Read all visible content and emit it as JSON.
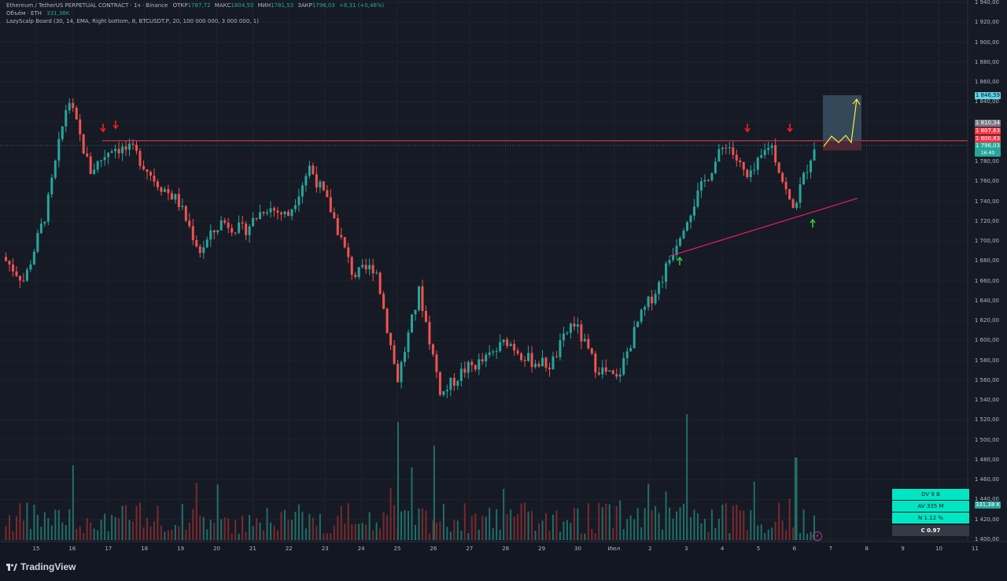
{
  "header": {
    "symbol": "Ethereum / TetherUS PERPETUAL CONTRACT · 1ч · Binance",
    "open_label": "ОТКР",
    "open": "1787,72",
    "high_label": "МАКС",
    "high": "1804,50",
    "low_label": "МИН",
    "low": "1781,53",
    "close_label": "ЗАКР",
    "close": "1796,03",
    "change": "+8,31 (+0,46%)",
    "volume_label": "Объём · ETH",
    "volume": "331,38K",
    "indicator": "LazyScalp Board (30, 14, EMA, Right bottom, 8, BTCUSDT.P, 20, 100 000 000, 3 000 000, 1)"
  },
  "price_axis": [
    "1 940,00",
    "1 920,00",
    "1 900,00",
    "1 880,00",
    "1 860,00",
    "1 840,00",
    "1 820,00",
    "1 800,00",
    "1 780,00",
    "1 760,00",
    "1 740,00",
    "1 720,00",
    "1 700,00",
    "1 680,00",
    "1 660,00",
    "1 640,00",
    "1 620,00",
    "1 600,00",
    "1 580,00",
    "1 560,00",
    "1 540,00",
    "1 520,00",
    "1 500,00",
    "1 480,00",
    "1 460,00",
    "1 440,00",
    "1 420,00",
    "1 400,00"
  ],
  "time_axis": [
    "15",
    "16",
    "17",
    "18",
    "19",
    "20",
    "21",
    "22",
    "23",
    "24",
    "25",
    "26",
    "27",
    "28",
    "29",
    "30",
    "Июл",
    "2",
    "3",
    "4",
    "5",
    "6",
    "7",
    "8",
    "9",
    "10",
    "11"
  ],
  "price_labels": {
    "target": "1 846,59",
    "l1": "1 810,34",
    "l2": "1 807,63",
    "l3": "1 800,83",
    "last": "1 796,03",
    "countdown": "16:40",
    "volume": "331,38 K"
  },
  "stats": {
    "dv": "DV 9 B",
    "av": "AV 335 M",
    "n": "N 1.12 %",
    "c": "C  0.97"
  },
  "colors": {
    "background": "#161a25",
    "up": "#26a69a",
    "down": "#ef5350",
    "resistance": "#f23645",
    "trendline": "#e91e63",
    "projection": "#ffeb3b",
    "target_box": "#3d5a6b"
  },
  "chart_data": {
    "type": "candlestick",
    "symbol": "ETHUSDT.P",
    "timeframe": "1h",
    "ylim": [
      1400,
      1940
    ],
    "resistance_level": 1800.83,
    "target_level": 1846.59,
    "last_price": 1796.03,
    "approx_path": [
      {
        "x": "15",
        "y": 1684
      },
      {
        "x": "15",
        "y": 1660
      },
      {
        "x": "15",
        "y": 1730
      },
      {
        "x": "16",
        "y": 1845
      },
      {
        "x": "16",
        "y": 1770
      },
      {
        "x": "17",
        "y": 1795
      },
      {
        "x": "17",
        "y": 1790
      },
      {
        "x": "18",
        "y": 1760
      },
      {
        "x": "18",
        "y": 1740
      },
      {
        "x": "19",
        "y": 1690
      },
      {
        "x": "19",
        "y": 1720
      },
      {
        "x": "20",
        "y": 1710
      },
      {
        "x": "21",
        "y": 1735
      },
      {
        "x": "22",
        "y": 1725
      },
      {
        "x": "23",
        "y": 1775
      },
      {
        "x": "23",
        "y": 1730
      },
      {
        "x": "24",
        "y": 1665
      },
      {
        "x": "24",
        "y": 1675
      },
      {
        "x": "25",
        "y": 1560
      },
      {
        "x": "25",
        "y": 1650
      },
      {
        "x": "26",
        "y": 1545
      },
      {
        "x": "26",
        "y": 1570
      },
      {
        "x": "27",
        "y": 1580
      },
      {
        "x": "28",
        "y": 1600
      },
      {
        "x": "28",
        "y": 1580
      },
      {
        "x": "29",
        "y": 1575
      },
      {
        "x": "30",
        "y": 1620
      },
      {
        "x": "30",
        "y": 1575
      },
      {
        "x": "Июл",
        "y": 1560
      },
      {
        "x": "2",
        "y": 1620
      },
      {
        "x": "2",
        "y": 1660
      },
      {
        "x": "3",
        "y": 1715
      },
      {
        "x": "4",
        "y": 1760
      },
      {
        "x": "5",
        "y": 1800
      },
      {
        "x": "5",
        "y": 1760
      },
      {
        "x": "6",
        "y": 1800
      },
      {
        "x": "6",
        "y": 1730
      },
      {
        "x": "7",
        "y": 1796
      }
    ],
    "volume_peaks": [
      {
        "x": "16",
        "y": 95
      },
      {
        "x": "25",
        "y": 150
      },
      {
        "x": "26",
        "y": 120
      },
      {
        "x": "3",
        "y": 160
      },
      {
        "x": "6",
        "y": 105
      }
    ]
  }
}
